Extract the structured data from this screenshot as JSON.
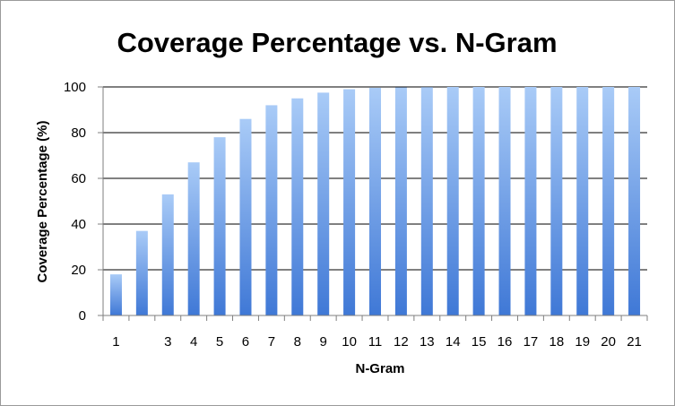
{
  "chart_data": {
    "type": "bar",
    "title": "Coverage Percentage vs. N-Gram",
    "xlabel": "N-Gram",
    "ylabel": "Coverage Percentage (%)",
    "categories": [
      "1",
      "",
      "3",
      "4",
      "5",
      "6",
      "7",
      "8",
      "9",
      "10",
      "11",
      "12",
      "13",
      "14",
      "15",
      "16",
      "17",
      "18",
      "19",
      "20",
      "21"
    ],
    "values": [
      18,
      37,
      53,
      67,
      78,
      86,
      92,
      95,
      97.5,
      99,
      99.6,
      99.8,
      99.9,
      100,
      100,
      100,
      100,
      100,
      100,
      100,
      100
    ],
    "ylim": [
      0,
      100
    ],
    "yticks": [
      "0",
      "20",
      "40",
      "60",
      "80",
      "100"
    ],
    "grid": true,
    "legend": "none",
    "colors": {
      "bar_top": "#a9cbf7",
      "bar_bottom": "#3f78d6",
      "grid": "#000000",
      "axis": "#7f7f7f"
    }
  }
}
